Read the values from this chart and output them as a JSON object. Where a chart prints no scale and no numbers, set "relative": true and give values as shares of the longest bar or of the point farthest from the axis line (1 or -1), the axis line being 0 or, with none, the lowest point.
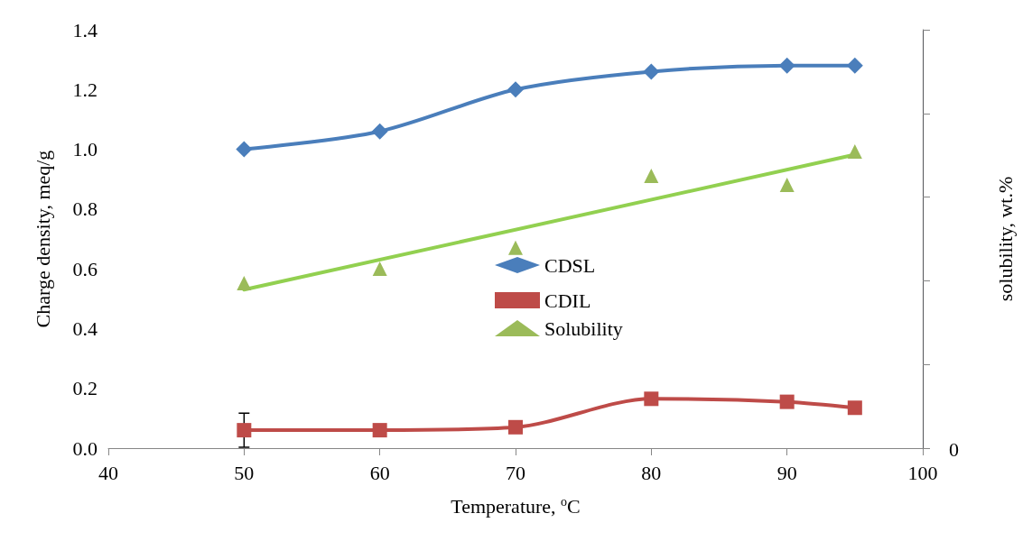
{
  "chart_data": [
    {
      "type": "line",
      "xlabel": "Temperature, $^{o}$C",
      "ylabel": "Charge density, meq/g",
      "x": [
        50,
        60,
        70,
        80,
        90,
        95
      ],
      "series": [
        {
          "name": "CDSL",
          "color": "#4a7ebb",
          "marker": "diamond",
          "values": [
            1.0,
            1.06,
            1.2,
            1.26,
            1.28,
            1.28
          ]
        },
        {
          "name": "CDIL",
          "color": "#be4b48",
          "marker": "square",
          "values": [
            0.06,
            0.06,
            0.07,
            0.165,
            0.155,
            0.135
          ],
          "errors": [
            0.057,
            null,
            null,
            null,
            null,
            null
          ]
        }
      ],
      "xlim": [
        40,
        100
      ],
      "xticks": [
        40,
        50,
        60,
        70,
        80,
        90,
        100
      ],
      "ylim": [
        0,
        1.4
      ],
      "yticks": [
        {
          "value": 0,
          "label": "0.0"
        },
        {
          "value": 0.2,
          "label": "0.2"
        },
        {
          "value": 0.4,
          "label": "0.4"
        },
        {
          "value": 0.6,
          "label": "0.6"
        },
        {
          "value": 0.8,
          "label": "0.8"
        },
        {
          "value": 1.0,
          "label": "1.0"
        },
        {
          "value": 1.2,
          "label": "1.2"
        },
        {
          "value": 1.4,
          "label": "1.4"
        }
      ],
      "legend": "center"
    },
    {
      "type": "scatter",
      "relative": true,
      "y2label": "solubility, wt.%",
      "x": [
        50,
        60,
        70,
        80,
        90,
        95
      ],
      "series": [
        {
          "name": "Solubility",
          "axis": "y2",
          "color": "#9bbb59",
          "marker": "triangle",
          "values": [
            0.556,
            0.605,
            0.675,
            0.918,
            0.887,
            1
          ]
        },
        {
          "type": "line",
          "axis": "y2",
          "color": "#92d050",
          "marker": "none",
          "x": [
            50,
            95
          ],
          "values": [
            0.534,
            0.989
          ]
        }
      ],
      "xlim": [
        40,
        100
      ],
      "annotations": [
        "0"
      ],
      "legend": "center"
    }
  ]
}
